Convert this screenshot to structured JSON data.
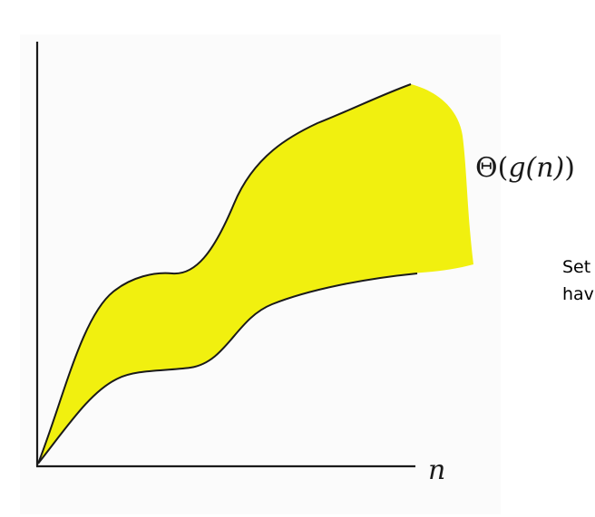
{
  "diagram": {
    "x_axis_label": "n",
    "region_label": {
      "prefix": "Θ(",
      "function": "g(n)",
      "suffix": ")"
    },
    "region_color": "#f1f00f",
    "stroke_color": "#1a1a1a"
  },
  "side_note": {
    "line1": "Set",
    "line2": "hav"
  }
}
